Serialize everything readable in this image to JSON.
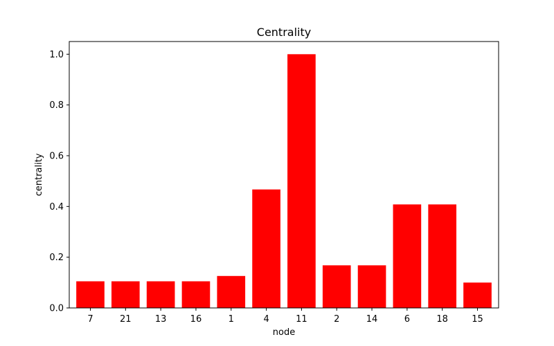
{
  "chart_data": {
    "type": "bar",
    "title": "Centrality",
    "xlabel": "node",
    "ylabel": "centrality",
    "categories": [
      "7",
      "21",
      "13",
      "16",
      "1",
      "4",
      "11",
      "2",
      "14",
      "6",
      "18",
      "15"
    ],
    "values": [
      0.105,
      0.105,
      0.105,
      0.105,
      0.126,
      0.467,
      1.0,
      0.168,
      0.168,
      0.408,
      0.408,
      0.1
    ],
    "ylim": [
      0.0,
      1.05
    ],
    "yticks": [
      0.0,
      0.2,
      0.4,
      0.6,
      0.8,
      1.0
    ],
    "ytick_labels": [
      "0.0",
      "0.2",
      "0.4",
      "0.6",
      "0.8",
      "1.0"
    ],
    "bar_color": "#ff0000",
    "grid": false,
    "legend": false
  }
}
